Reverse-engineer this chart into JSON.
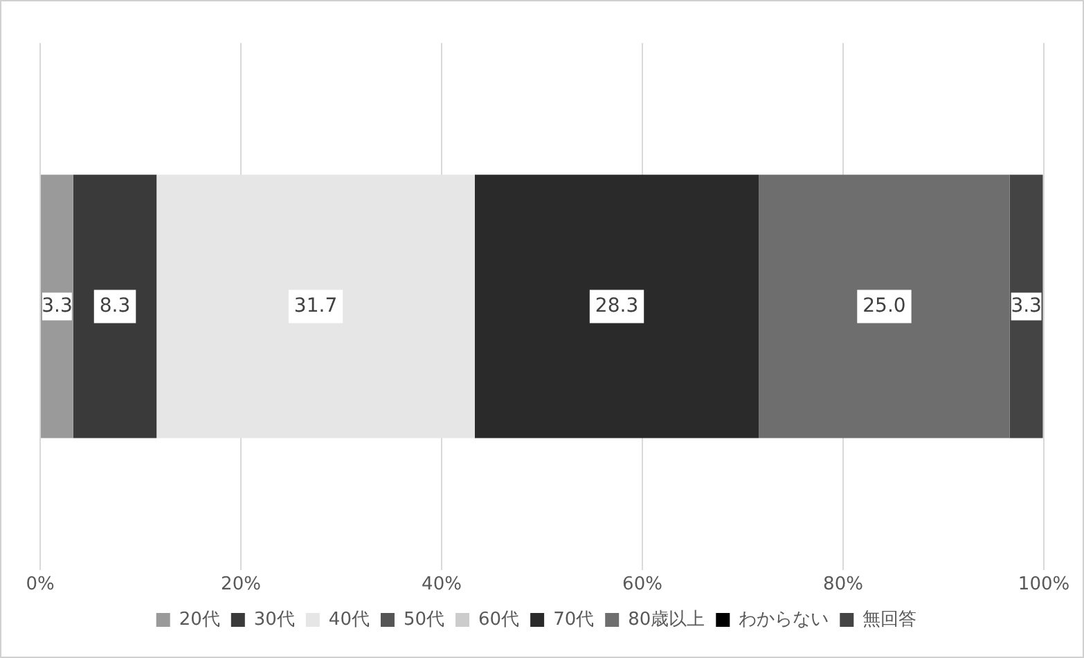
{
  "chart_data": {
    "type": "bar",
    "orientation": "horizontal",
    "stacked": true,
    "categories": [
      null
    ],
    "series": [
      {
        "name": "20代",
        "color": "#9a9a9a",
        "values": [
          3.3
        ],
        "value_labels": [
          "3.3"
        ]
      },
      {
        "name": "30代",
        "color": "#3a3a3a",
        "values": [
          8.3
        ],
        "value_labels": [
          "8.3"
        ]
      },
      {
        "name": "40代",
        "color": "#e6e6e6",
        "values": [
          31.7
        ],
        "value_labels": [
          "31.7"
        ]
      },
      {
        "name": "50代",
        "color": "#555555",
        "values": [
          0
        ],
        "value_labels": [
          null
        ]
      },
      {
        "name": "60代",
        "color": "#cccccc",
        "values": [
          0
        ],
        "value_labels": [
          null
        ]
      },
      {
        "name": "70代",
        "color": "#2a2a2a",
        "values": [
          28.3
        ],
        "value_labels": [
          "28.3"
        ]
      },
      {
        "name": "80歳以上",
        "color": "#6e6e6e",
        "values": [
          25.0
        ],
        "value_labels": [
          "25.0"
        ]
      },
      {
        "name": "わからない",
        "color": "#000000",
        "values": [
          0
        ],
        "value_labels": [
          null
        ]
      },
      {
        "name": "無回答",
        "color": "#444444",
        "values": [
          3.3
        ],
        "value_labels": [
          "3.3"
        ]
      }
    ],
    "xlim": [
      0,
      100
    ],
    "xticks": [
      {
        "value": 0,
        "label": "0%"
      },
      {
        "value": 20,
        "label": "20%"
      },
      {
        "value": 40,
        "label": "40%"
      },
      {
        "value": 60,
        "label": "60%"
      },
      {
        "value": 80,
        "label": "80%"
      },
      {
        "value": 100,
        "label": "100%"
      }
    ],
    "grid": "x",
    "legend": "bottom"
  }
}
